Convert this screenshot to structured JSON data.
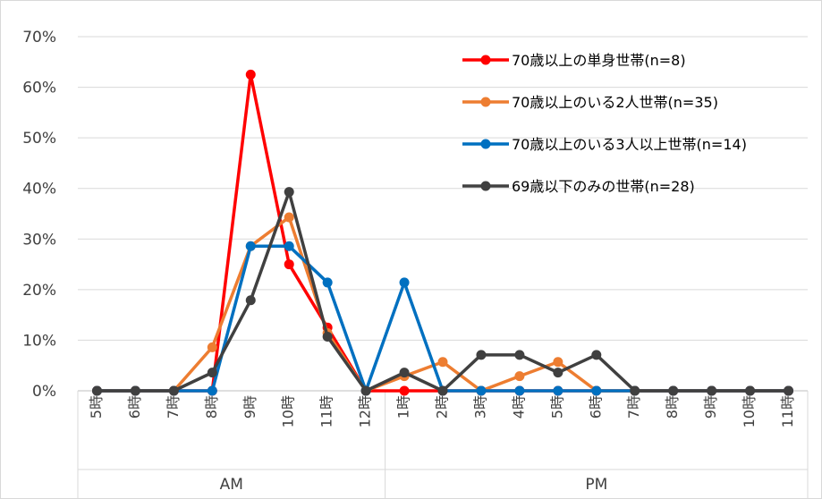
{
  "chart_data": {
    "type": "line",
    "title": "",
    "xlabel": "",
    "ylabel": "",
    "ylim": [
      0,
      70
    ],
    "yticks": [
      "0%",
      "10%",
      "20%",
      "30%",
      "40%",
      "50%",
      "60%",
      "70%"
    ],
    "grid": "horizontal",
    "legend_position": "top-right",
    "categories": [
      "5時",
      "6時",
      "7時",
      "8時",
      "9時",
      "10時",
      "11時",
      "12時",
      "1時",
      "2時",
      "3時",
      "4時",
      "5時",
      "6時",
      "7時",
      "8時",
      "9時",
      "10時",
      "11時"
    ],
    "groups": [
      {
        "label": "AM",
        "count": 8
      },
      {
        "label": "PM",
        "count": 11
      }
    ],
    "series": [
      {
        "name": "70歳以上の単身世帯(n=8)",
        "color": "#ff0000",
        "values": [
          0,
          0,
          0,
          0,
          62.5,
          25,
          12.5,
          0,
          0,
          0,
          0,
          0,
          0,
          0,
          0,
          0,
          0,
          0,
          0
        ]
      },
      {
        "name": "70歳以上のいる2人世帯(n=35)",
        "color": "#ed7d31",
        "values": [
          0,
          0,
          0,
          8.6,
          28.6,
          34.3,
          11.4,
          0,
          2.9,
          5.7,
          0,
          2.9,
          5.7,
          0,
          0,
          0,
          0,
          0,
          0
        ]
      },
      {
        "name": "70歳以上のいる3人以上世帯(n=14)",
        "color": "#0070c0",
        "values": [
          0,
          0,
          0,
          0,
          28.6,
          28.6,
          21.4,
          0,
          21.4,
          0,
          0,
          0,
          0,
          0,
          0,
          0,
          0,
          0,
          0
        ]
      },
      {
        "name": "69歳以下のみの世帯(n=28)",
        "color": "#404040",
        "values": [
          0,
          0,
          0,
          3.6,
          17.9,
          39.3,
          10.7,
          0,
          3.6,
          0,
          7.1,
          7.1,
          3.6,
          7.1,
          0,
          0,
          0,
          0,
          0
        ]
      }
    ]
  }
}
